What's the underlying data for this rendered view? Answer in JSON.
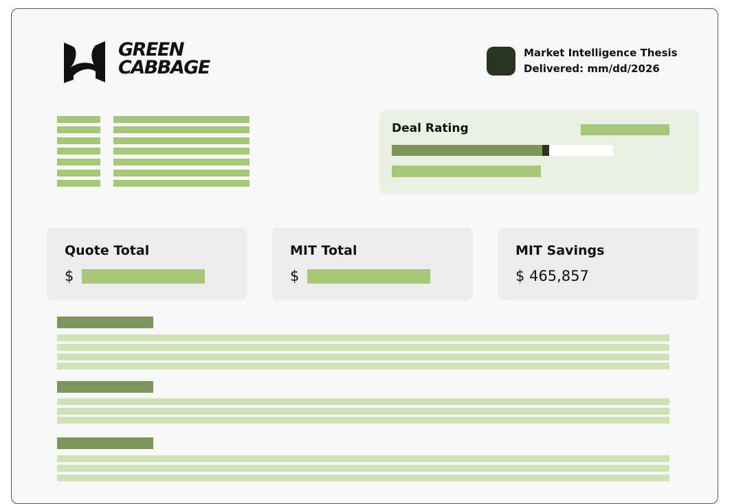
{
  "logo": {
    "text": "GREEN CABBAGE",
    "line1": "GREEN",
    "line2": "CABBAGE"
  },
  "header": {
    "title": "Market Intelligence Thesis",
    "delivered": "Delivered: mm/dd/2026"
  },
  "deal_rating": {
    "label": "Deal Rating",
    "fill_percent": 68,
    "marker_percent": 71
  },
  "cards": [
    {
      "title": "Quote Total",
      "currency": "$"
    },
    {
      "title": "MIT Total",
      "currency": "$"
    },
    {
      "title": "MIT Savings",
      "value": "$ 465,857"
    }
  ],
  "colors": {
    "accent": "#a6c77a",
    "dark_green": "#7d955c",
    "light_green": "#d0e3b8",
    "badge": "#2b3322"
  }
}
